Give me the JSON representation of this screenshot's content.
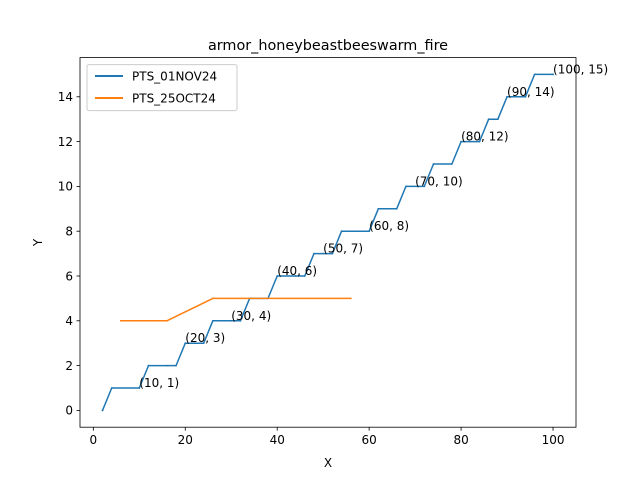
{
  "chart_data": {
    "type": "line",
    "title": "armor_honeybeastbeeswarm_fire",
    "xlabel": "X",
    "ylabel": "Y",
    "xlim": [
      -2.9,
      105
    ],
    "ylim": [
      -0.75,
      15.75
    ],
    "xticks": [
      0,
      20,
      40,
      60,
      80,
      100
    ],
    "yticks": [
      0,
      2,
      4,
      6,
      8,
      10,
      12,
      14
    ],
    "grid": false,
    "legend_position": "top-left",
    "series": [
      {
        "name": "PTS_01NOV24",
        "color": "#1f77b4",
        "points": [
          [
            2,
            0
          ],
          [
            4,
            1
          ],
          [
            10,
            1
          ],
          [
            12,
            2
          ],
          [
            16,
            2
          ],
          [
            18,
            2
          ],
          [
            20,
            3
          ],
          [
            22,
            3
          ],
          [
            24,
            3
          ],
          [
            26,
            4
          ],
          [
            30,
            4
          ],
          [
            32,
            4
          ],
          [
            34,
            5
          ],
          [
            38,
            5
          ],
          [
            40,
            6
          ],
          [
            44,
            6
          ],
          [
            46,
            6
          ],
          [
            48,
            7
          ],
          [
            50,
            7
          ],
          [
            52,
            7
          ],
          [
            54,
            8
          ],
          [
            60,
            8
          ],
          [
            62,
            9
          ],
          [
            66,
            9
          ],
          [
            68,
            10
          ],
          [
            72,
            10
          ],
          [
            74,
            11
          ],
          [
            78,
            11
          ],
          [
            80,
            12
          ],
          [
            84,
            12
          ],
          [
            86,
            13
          ],
          [
            88,
            13
          ],
          [
            90,
            14
          ],
          [
            94,
            14
          ],
          [
            96,
            15
          ],
          [
            100,
            15
          ]
        ]
      },
      {
        "name": "PTS_25OCT24",
        "color": "#ff7f0e",
        "points": [
          [
            6,
            4
          ],
          [
            16,
            4
          ],
          [
            26,
            5
          ],
          [
            56,
            5
          ]
        ]
      }
    ],
    "annotations": [
      {
        "label": "(10, 1)",
        "x": 10,
        "y": 1
      },
      {
        "label": "(20, 3)",
        "x": 20,
        "y": 3
      },
      {
        "label": "(30, 4)",
        "x": 30,
        "y": 4
      },
      {
        "label": "(40, 6)",
        "x": 40,
        "y": 6
      },
      {
        "label": "(50, 7)",
        "x": 50,
        "y": 7
      },
      {
        "label": "(60, 8)",
        "x": 60,
        "y": 8
      },
      {
        "label": "(70, 10)",
        "x": 70,
        "y": 10
      },
      {
        "label": "(80, 12)",
        "x": 80,
        "y": 12
      },
      {
        "label": "(90, 14)",
        "x": 90,
        "y": 14
      },
      {
        "label": "(100, 15)",
        "x": 100,
        "y": 15
      }
    ]
  }
}
